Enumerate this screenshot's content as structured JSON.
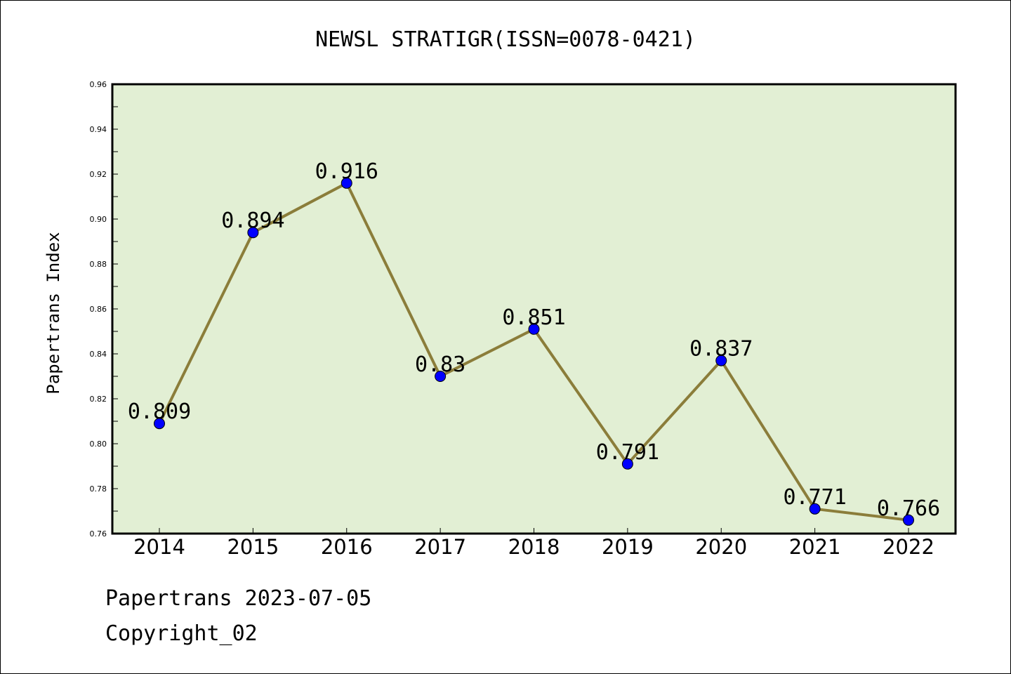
{
  "chart_data": {
    "type": "line",
    "title": "NEWSL STRATIGR(ISSN=0078-0421)",
    "xlabel": "",
    "ylabel": "Papertrans Index",
    "categories": [
      "2014",
      "2015",
      "2016",
      "2017",
      "2018",
      "2019",
      "2020",
      "2021",
      "2022"
    ],
    "values": [
      0.809,
      0.894,
      0.916,
      0.83,
      0.851,
      0.791,
      0.837,
      0.771,
      0.766
    ],
    "data_labels": [
      "0.809",
      "0.894",
      "0.916",
      "0.83",
      "0.851",
      "0.791",
      "0.837",
      "0.771",
      "0.766"
    ],
    "ylim": [
      0.76,
      0.96
    ],
    "yticks": [
      "0.76",
      "0.78",
      "0.80",
      "0.82",
      "0.84",
      "0.86",
      "0.88",
      "0.90",
      "0.92",
      "0.94",
      "0.96"
    ],
    "grid": false,
    "colors": {
      "plot_background": "#e2efd4",
      "line": "#8b7d3a",
      "marker": "#0000ff"
    }
  },
  "footer": {
    "date_line": "Papertrans 2023-07-05",
    "copyright_line": "Copyright_02"
  }
}
